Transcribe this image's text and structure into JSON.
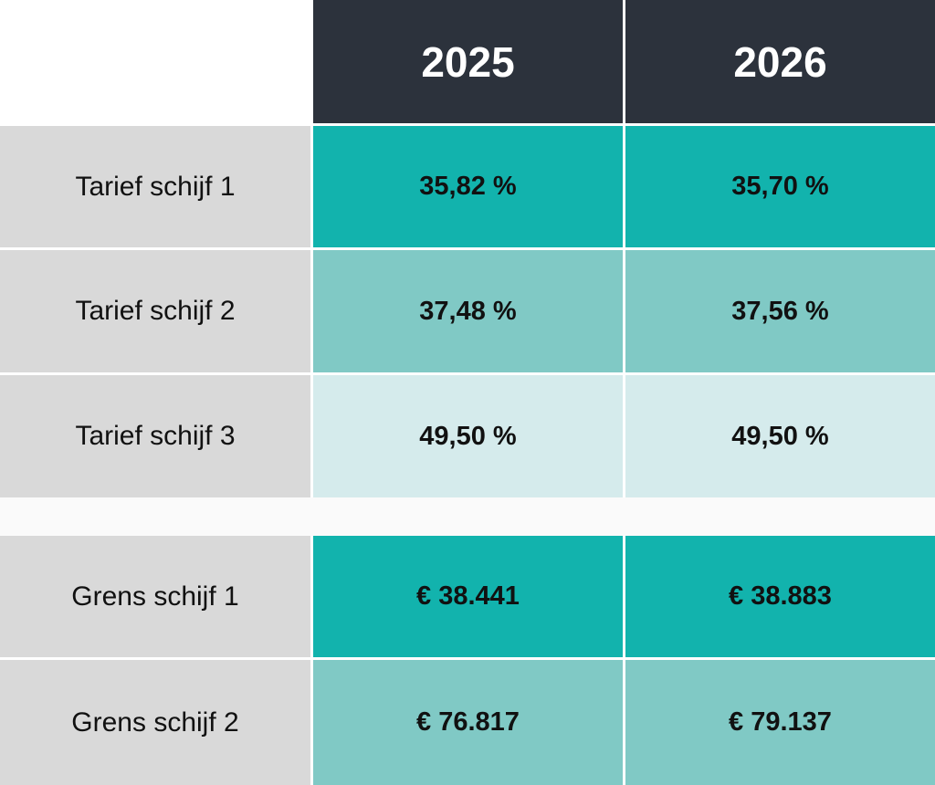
{
  "header": {
    "col1": "2025",
    "col2": "2026"
  },
  "rates": [
    {
      "label": "Tarief schijf 1",
      "v2025": "35,82 %",
      "v2026": "35,70 %"
    },
    {
      "label": "Tarief schijf 2",
      "v2025": "37,48 %",
      "v2026": "37,56 %"
    },
    {
      "label": "Tarief schijf 3",
      "v2025": "49,50 %",
      "v2026": "49,50 %"
    }
  ],
  "limits": [
    {
      "label": "Grens schijf 1",
      "v2025": "€ 38.441",
      "v2026": "€ 38.883"
    },
    {
      "label": "Grens schijf 2",
      "v2025": "€ 76.817",
      "v2026": "€ 79.137"
    }
  ],
  "colors": {
    "header_bg": "#2c323c",
    "label_bg": "#d9d9d9",
    "tier1": "#12b3ad",
    "tier2": "#80c9c5",
    "tier3": "#d5ebec"
  }
}
